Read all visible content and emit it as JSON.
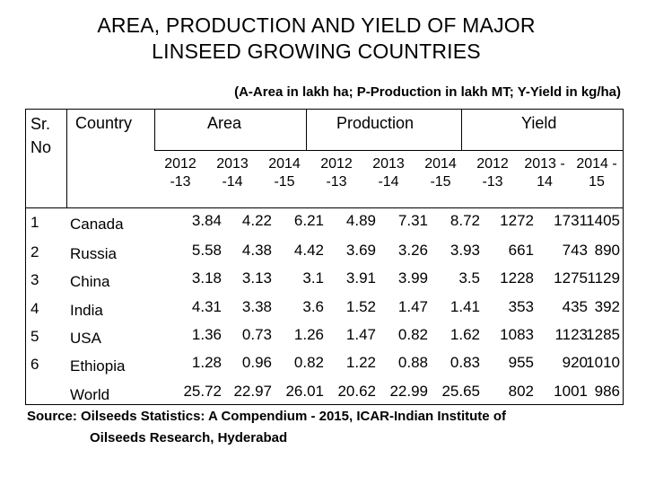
{
  "title": {
    "line1": "AREA, PRODUCTION AND YIELD OF MAJOR",
    "line2": "LINSEED GROWING COUNTRIES"
  },
  "subtitle": "(A-Area in lakh ha; P-Production in lakh MT; Y-Yield in kg/ha)",
  "headers": {
    "sr_line1": "Sr.",
    "sr_line2": "No",
    "country": "Country",
    "area": "Area",
    "production": "Production",
    "yield": "Yield"
  },
  "subheaders": [
    [
      "2012",
      "-13"
    ],
    [
      "2013",
      "-14"
    ],
    [
      "2014",
      "-15"
    ],
    [
      "2012",
      "-13"
    ],
    [
      "2013",
      "-14"
    ],
    [
      "2014",
      "-15"
    ],
    [
      "2012",
      "-13"
    ],
    [
      "2013 -",
      "14"
    ],
    [
      "2014 -",
      "15"
    ]
  ],
  "rows": [
    {
      "sr": "1",
      "country": "Canada",
      "values": [
        "3.84",
        "4.22",
        "6.21",
        "4.89",
        "7.31",
        "8.72",
        "1272",
        "1731",
        "1405"
      ]
    },
    {
      "sr": "2",
      "country": "Russia",
      "values": [
        "5.58",
        "4.38",
        "4.42",
        "3.69",
        "3.26",
        "3.93",
        "661",
        "743",
        "890"
      ]
    },
    {
      "sr": "3",
      "country": "China",
      "values": [
        "3.18",
        "3.13",
        "3.1",
        "3.91",
        "3.99",
        "3.5",
        "1228",
        "1275",
        "1129"
      ]
    },
    {
      "sr": "4",
      "country": "India",
      "values": [
        "4.31",
        "3.38",
        "3.6",
        "1.52",
        "1.47",
        "1.41",
        "353",
        "435",
        "392"
      ]
    },
    {
      "sr": "5",
      "country": "USA",
      "values": [
        "1.36",
        "0.73",
        "1.26",
        "1.47",
        "0.82",
        "1.62",
        "1083",
        "1123",
        "1285"
      ]
    },
    {
      "sr": "6",
      "country": "Ethiopia",
      "values": [
        "1.28",
        "0.96",
        "0.82",
        "1.22",
        "0.88",
        "0.83",
        "955",
        "920",
        "1010"
      ]
    },
    {
      "sr": "",
      "country": "World",
      "values": [
        "25.72",
        "22.97",
        "26.01",
        "20.62",
        "22.99",
        "25.65",
        "802",
        "1001",
        "986"
      ]
    }
  ],
  "source": {
    "line1": "Source: Oilseeds Statistics: A Compendium - 2015, ICAR-Indian Institute of",
    "line2": "Oilseeds Research, Hyderabad"
  }
}
